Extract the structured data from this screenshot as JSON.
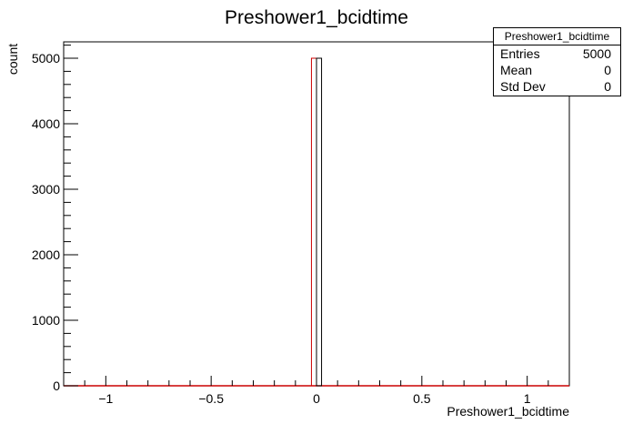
{
  "chart_data": {
    "type": "bar",
    "title": "Preshower1_bcidtime",
    "xlabel": "Preshower1_bcidtime",
    "ylabel": "count",
    "xlim": [
      -1.2,
      1.2
    ],
    "ylim": [
      0,
      5250
    ],
    "x_ticks": [
      -1,
      -0.5,
      0,
      0.5,
      1
    ],
    "x_tick_labels": [
      "−1",
      "−0.5",
      "0",
      "0.5",
      "1"
    ],
    "y_ticks": [
      0,
      1000,
      2000,
      3000,
      4000,
      5000
    ],
    "y_tick_labels": [
      "0",
      "1000",
      "2000",
      "3000",
      "4000",
      "5000"
    ],
    "bins": [
      {
        "x_low": -0.024,
        "x_high": 0.0,
        "value": 5000,
        "color": "#cc0000"
      },
      {
        "x_low": 0.0,
        "x_high": 0.024,
        "value": 5000,
        "color": "#000000"
      }
    ],
    "baseline_color": "#cc0000",
    "grid": false,
    "legend": "none"
  },
  "stats": {
    "title": "Preshower1_bcidtime",
    "rows": [
      {
        "label": "Entries",
        "value": "5000"
      },
      {
        "label": "Mean",
        "value": "0"
      },
      {
        "label": "Std Dev",
        "value": "0"
      }
    ]
  }
}
